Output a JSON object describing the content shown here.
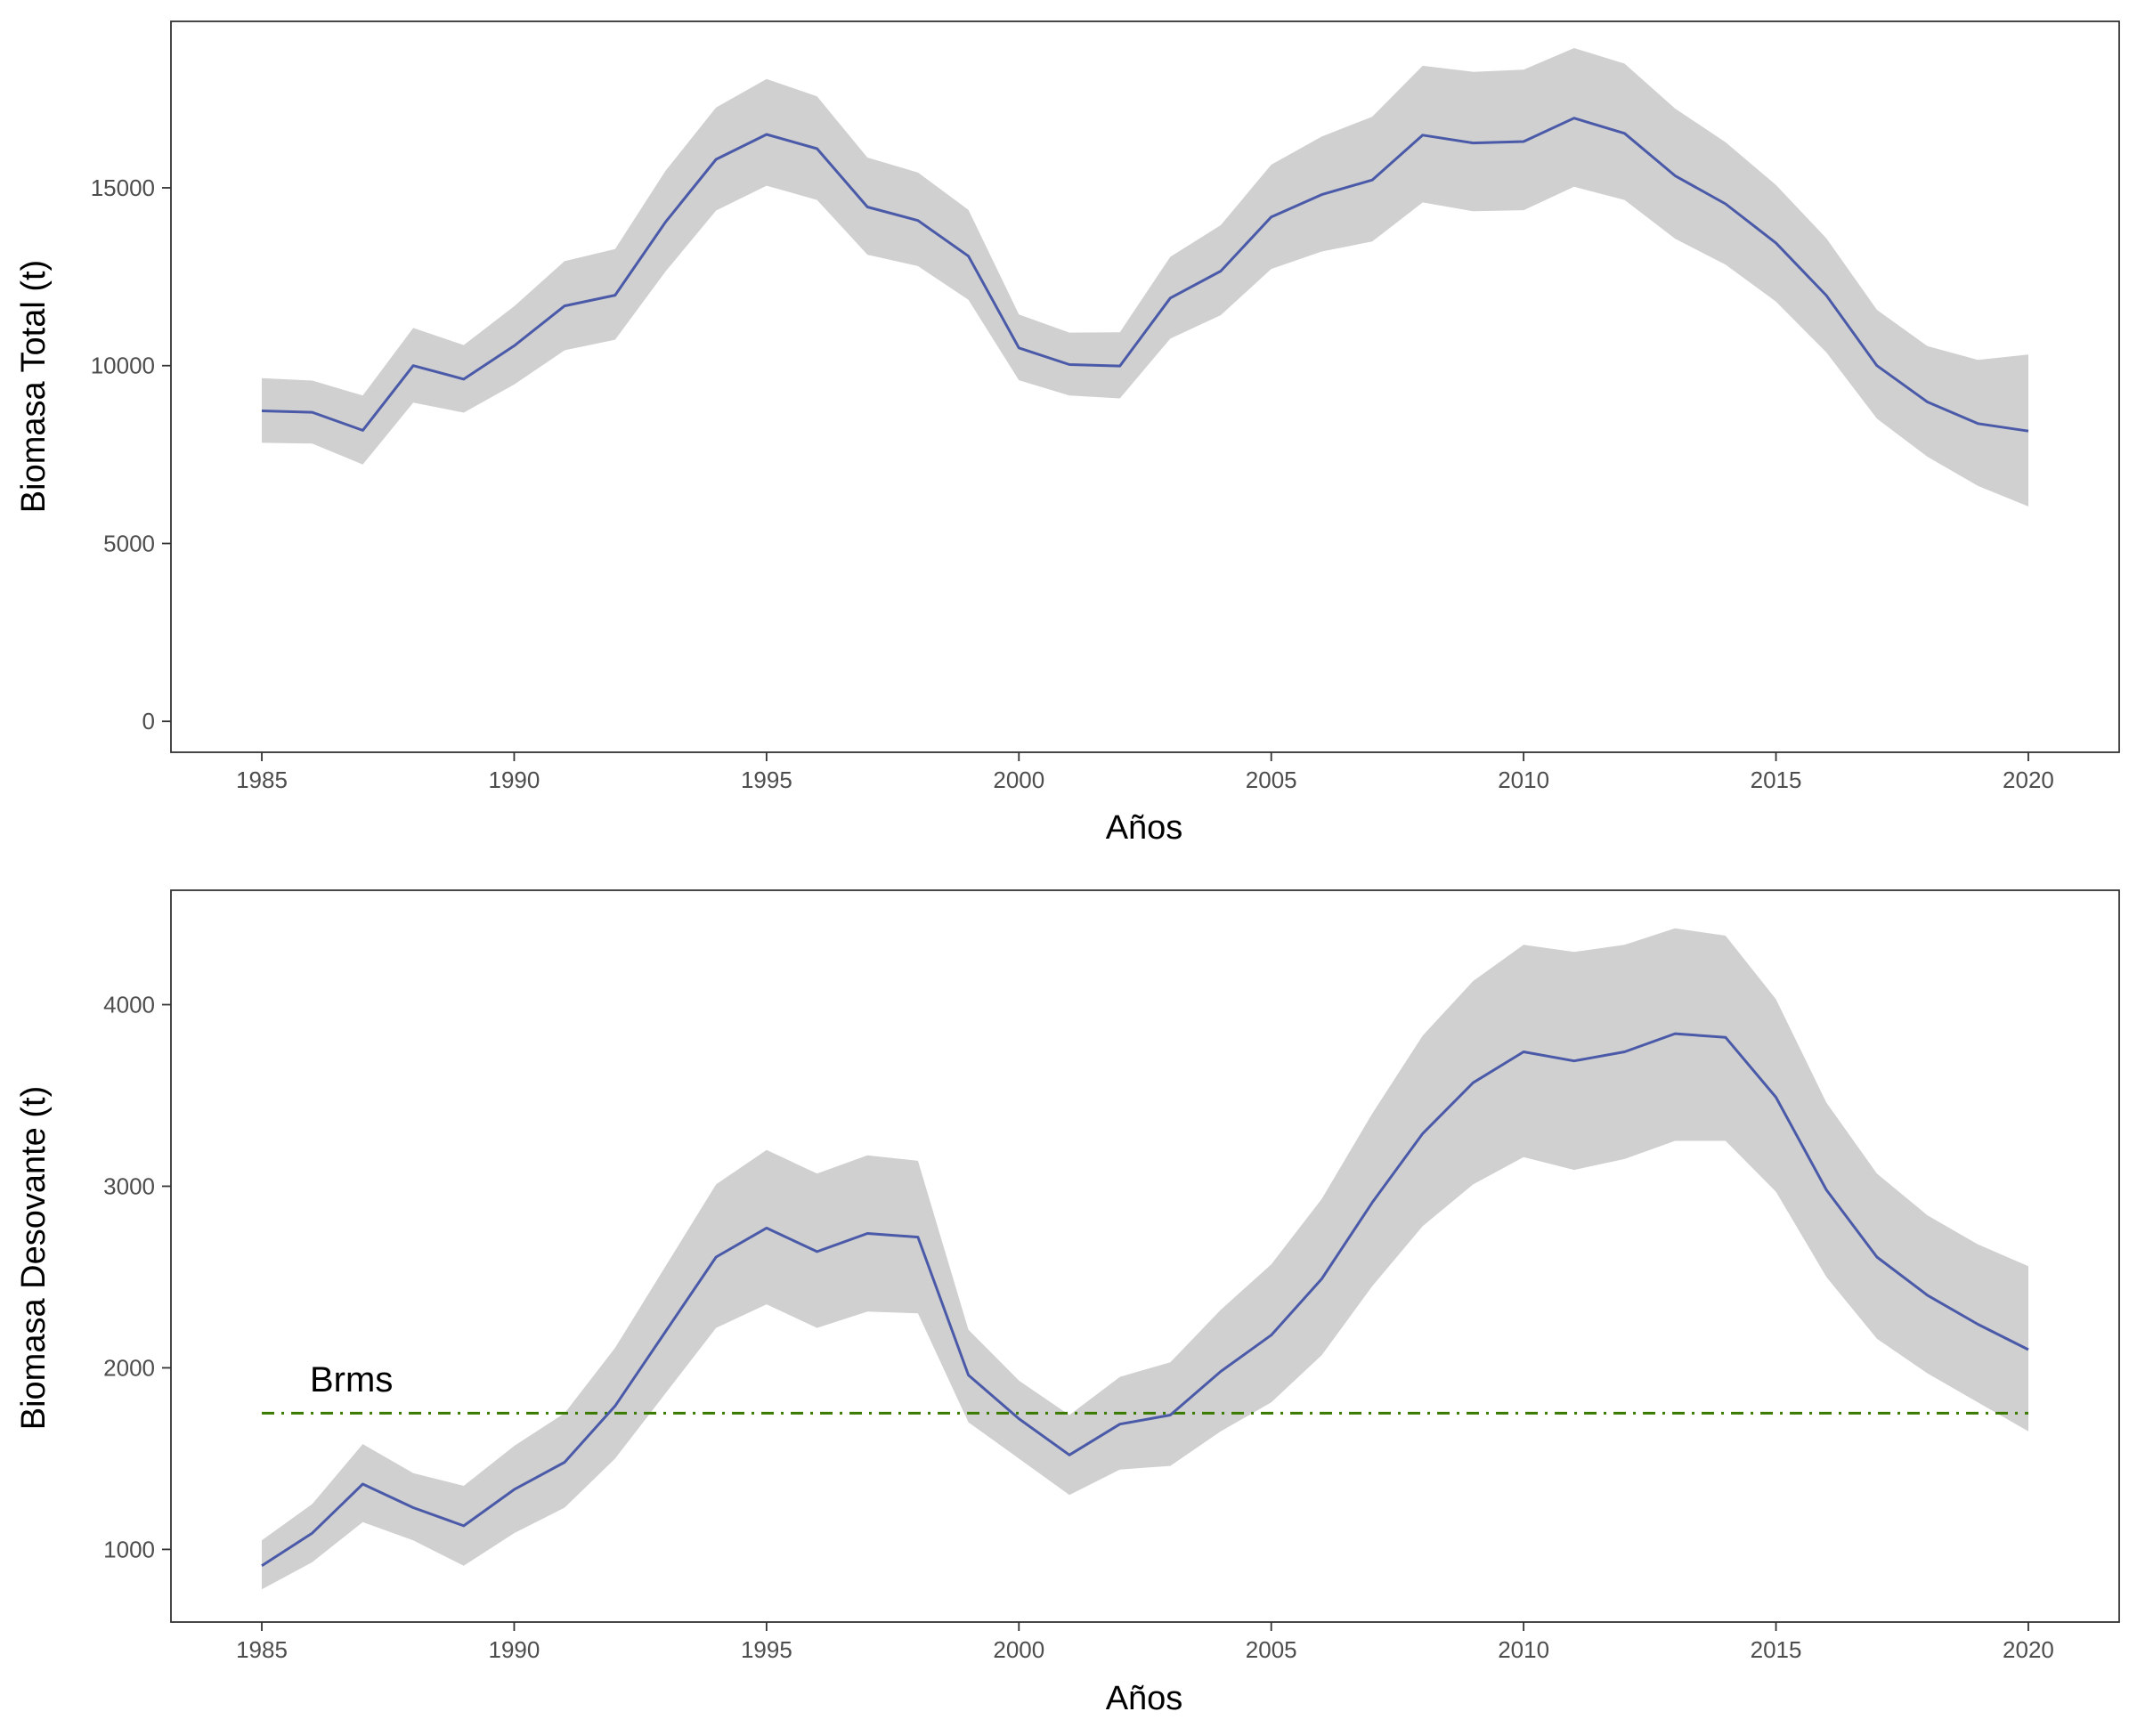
{
  "chart_data": [
    {
      "type": "line",
      "xlabel": "Años",
      "ylabel": "Biomasa Total (t)",
      "xlim": [
        1983.2,
        2021.8
      ],
      "ylim": [
        -870,
        19680
      ],
      "x_ticks": [
        1985,
        1990,
        1995,
        2000,
        2005,
        2010,
        2015,
        2020
      ],
      "y_ticks": [
        0,
        5000,
        10000,
        15000
      ],
      "grid": false,
      "legend": "none",
      "colors": {
        "line": "#4a5aa8",
        "band": "#d0d0d0"
      },
      "x": [
        1985,
        1986,
        1987,
        1988,
        1989,
        1990,
        1991,
        1992,
        1993,
        1994,
        1995,
        1996,
        1997,
        1998,
        1999,
        2000,
        2001,
        2002,
        2003,
        2004,
        2005,
        2006,
        2007,
        2008,
        2009,
        2010,
        2011,
        2012,
        2013,
        2014,
        2015,
        2016,
        2017,
        2018,
        2019,
        2020
      ],
      "series": [
        {
          "values": [
            8730,
            8690,
            8180,
            10000,
            9620,
            10560,
            11680,
            11980,
            14040,
            15800,
            16500,
            16100,
            14460,
            14080,
            13080,
            10500,
            10030,
            9990,
            11900,
            12660,
            14180,
            14810,
            15220,
            16480,
            16260,
            16300,
            16960,
            16530,
            15340,
            14550,
            13450,
            11970,
            10000,
            8980,
            8370,
            8160
          ],
          "lower": [
            7830,
            7810,
            7220,
            8960,
            8680,
            9470,
            10430,
            10730,
            12650,
            14360,
            15060,
            14660,
            13120,
            12800,
            11850,
            9590,
            9160,
            9080,
            10760,
            11420,
            12720,
            13210,
            13490,
            14590,
            14340,
            14370,
            15030,
            14660,
            13570,
            12840,
            11800,
            10370,
            8510,
            7440,
            6620,
            6040
          ],
          "upper": [
            9650,
            9580,
            9160,
            11060,
            10580,
            11670,
            12940,
            13280,
            15480,
            17260,
            18060,
            17570,
            15850,
            15430,
            14380,
            11440,
            10930,
            10940,
            13060,
            13950,
            15650,
            16440,
            17000,
            18430,
            18260,
            18320,
            18930,
            18490,
            17230,
            16280,
            15080,
            13580,
            11570,
            10550,
            10160,
            10310
          ]
        }
      ]
    },
    {
      "type": "line",
      "xlabel": "Años",
      "ylabel": "Biomasa Desovante (t)",
      "xlim": [
        1983.2,
        2021.8
      ],
      "ylim": [
        600,
        4630
      ],
      "x_ticks": [
        1985,
        1990,
        1995,
        2000,
        2005,
        2010,
        2015,
        2020
      ],
      "y_ticks": [
        1000,
        2000,
        3000,
        4000
      ],
      "grid": false,
      "legend": "none",
      "colors": {
        "line": "#4a5aa8",
        "band": "#d0d0d0",
        "reference": "#3a7a00"
      },
      "reference_line": {
        "label": "Brms",
        "value": 1750,
        "style": "dash-dot"
      },
      "x": [
        1985,
        1986,
        1987,
        1988,
        1989,
        1990,
        1991,
        1992,
        1993,
        1994,
        1995,
        1996,
        1997,
        1998,
        1999,
        2000,
        2001,
        2002,
        2003,
        2004,
        2005,
        2006,
        2007,
        2008,
        2009,
        2010,
        2011,
        2012,
        2013,
        2014,
        2015,
        2016,
        2017,
        2018,
        2019,
        2020
      ],
      "series": [
        {
          "values": [
            910,
            1090,
            1360,
            1230,
            1130,
            1330,
            1480,
            1790,
            2200,
            2610,
            2770,
            2640,
            2740,
            2720,
            1960,
            1720,
            1520,
            1690,
            1740,
            1980,
            2180,
            2490,
            2910,
            3290,
            3570,
            3740,
            3690,
            3740,
            3840,
            3820,
            3490,
            2980,
            2610,
            2400,
            2240,
            2100
          ],
          "lower": [
            780,
            930,
            1150,
            1050,
            910,
            1090,
            1230,
            1500,
            1860,
            2220,
            2350,
            2220,
            2310,
            2300,
            1700,
            1500,
            1300,
            1440,
            1460,
            1650,
            1810,
            2070,
            2450,
            2780,
            3010,
            3160,
            3090,
            3150,
            3250,
            3250,
            2970,
            2500,
            2160,
            1970,
            1810,
            1650
          ],
          "upper": [
            1050,
            1250,
            1580,
            1420,
            1350,
            1570,
            1750,
            2110,
            2560,
            3010,
            3200,
            3070,
            3170,
            3140,
            2210,
            1930,
            1740,
            1950,
            2030,
            2320,
            2570,
            2930,
            3400,
            3830,
            4130,
            4330,
            4290,
            4330,
            4420,
            4380,
            4030,
            3460,
            3070,
            2840,
            2680,
            2560
          ]
        }
      ]
    }
  ]
}
